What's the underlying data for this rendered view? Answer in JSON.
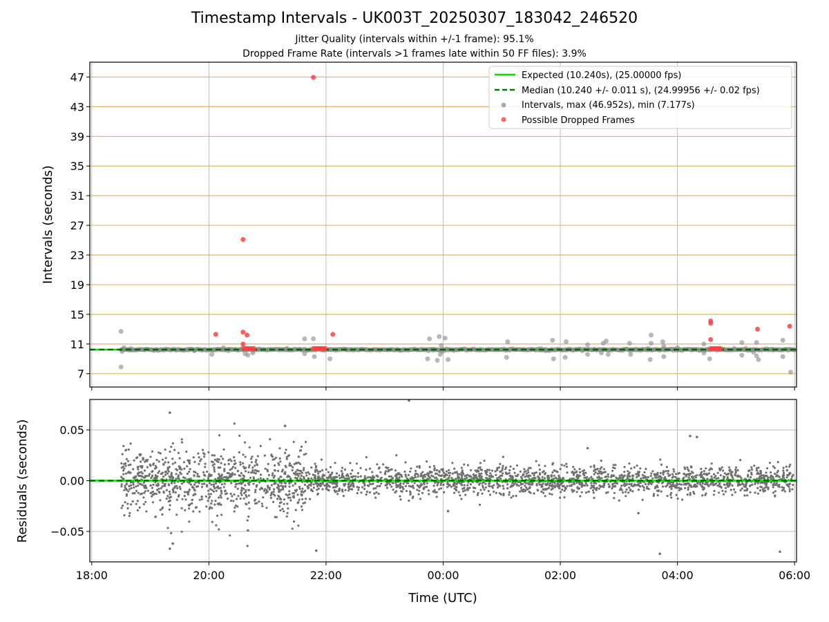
{
  "chart_data": [
    {
      "type": "scatter",
      "title": "Timestamp Intervals - UK003T_20250307_183042_246520",
      "subtitle_1": "Jitter Quality (intervals within +/-1 frame): 95.1%",
      "subtitle_2": "Dropped Frame Rate (intervals >1 frames late within 50 FF files): 3.9%",
      "ylabel": "Intervals (seconds)",
      "xlim": [
        "17:58",
        "06:02"
      ],
      "ylim": [
        5.2,
        49.0
      ],
      "yticks": [
        7,
        11,
        15,
        19,
        23,
        27,
        31,
        35,
        39,
        43,
        47
      ],
      "ytick_labels": [
        "7",
        "11",
        "15",
        "19",
        "23",
        "27",
        "31",
        "35",
        "39",
        "43",
        "47"
      ],
      "xticks": [
        "18:00",
        "20:00",
        "22:00",
        "00:00",
        "02:00",
        "04:00",
        "06:00"
      ],
      "xgrid": true,
      "hlines_color": "#d4b86a",
      "legend_position": "top-right",
      "legend": [
        {
          "label": "Expected (10.240s), (25.00000 fps)",
          "marker": "line",
          "color": "#00e000"
        },
        {
          "label": "Median (10.240 +/- 0.011 s), (24.99956 +/- 0.02 fps)",
          "marker": "dashed",
          "color": "#007800"
        },
        {
          "label": "Intervals, max (46.952s), min (7.177s)",
          "marker": "dot",
          "color": "#888888"
        },
        {
          "label": "Possible Dropped Frames",
          "marker": "dot",
          "color": "#ff4040"
        }
      ],
      "expected_interval": 10.24,
      "median_interval": 10.24,
      "series": [
        {
          "name": "Intervals, max (46.952s), min (7.177s)",
          "color": "#888888",
          "baseline": {
            "x_start": "18:30",
            "x_end": "06:00",
            "value": 10.24
          },
          "points": [
            [
              "18:30",
              12.7
            ],
            [
              "18:30",
              7.9
            ],
            [
              "18:31",
              10.0
            ],
            [
              "18:33",
              10.5
            ],
            [
              "18:40",
              10.4
            ],
            [
              "19:45",
              10.1
            ],
            [
              "20:03",
              9.6
            ],
            [
              "20:15",
              10.5
            ],
            [
              "20:20",
              10.1
            ],
            [
              "20:35",
              10.5
            ],
            [
              "20:37",
              9.7
            ],
            [
              "20:40",
              9.5
            ],
            [
              "20:45",
              9.8
            ],
            [
              "21:20",
              10.4
            ],
            [
              "21:38",
              9.7
            ],
            [
              "21:38",
              11.7
            ],
            [
              "21:47",
              11.7
            ],
            [
              "21:48",
              9.3
            ],
            [
              "22:04",
              9.0
            ],
            [
              "22:20",
              10.3
            ],
            [
              "23:15",
              10.2
            ],
            [
              "23:44",
              9.0
            ],
            [
              "23:46",
              11.7
            ],
            [
              "23:50",
              10.3
            ],
            [
              "23:54",
              8.8
            ],
            [
              "23:56",
              12.0
            ],
            [
              "23:57",
              9.6
            ],
            [
              "23:58",
              10.8
            ],
            [
              "23:59",
              10.0
            ],
            [
              "00:02",
              11.8
            ],
            [
              "00:05",
              8.9
            ],
            [
              "01:05",
              9.2
            ],
            [
              "01:06",
              11.3
            ],
            [
              "01:40",
              10.4
            ],
            [
              "01:45",
              10.1
            ],
            [
              "01:52",
              11.5
            ],
            [
              "01:53",
              9.0
            ],
            [
              "02:05",
              9.2
            ],
            [
              "02:06",
              11.3
            ],
            [
              "02:28",
              9.6
            ],
            [
              "02:28",
              10.9
            ],
            [
              "02:35",
              10.3
            ],
            [
              "02:42",
              9.8
            ],
            [
              "02:44",
              11.1
            ],
            [
              "02:47",
              11.4
            ],
            [
              "02:49",
              9.6
            ],
            [
              "03:11",
              11.1
            ],
            [
              "03:12",
              9.6
            ],
            [
              "03:30",
              10.4
            ],
            [
              "03:32",
              8.9
            ],
            [
              "03:33",
              11.1
            ],
            [
              "03:33",
              12.2
            ],
            [
              "03:45",
              11.3
            ],
            [
              "03:46",
              9.3
            ],
            [
              "03:46",
              10.7
            ],
            [
              "04:00",
              10.5
            ],
            [
              "04:15",
              10.2
            ],
            [
              "04:27",
              9.8
            ],
            [
              "04:27",
              11.0
            ],
            [
              "04:33",
              9.0
            ],
            [
              "04:48",
              10.3
            ],
            [
              "04:58",
              10.4
            ],
            [
              "05:06",
              9.5
            ],
            [
              "05:06",
              11.2
            ],
            [
              "05:10",
              10.4
            ],
            [
              "05:14",
              10.2
            ],
            [
              "05:18",
              9.9
            ],
            [
              "05:21",
              11.2
            ],
            [
              "05:21",
              9.4
            ],
            [
              "05:23",
              8.9
            ],
            [
              "05:38",
              10.3
            ],
            [
              "05:48",
              9.3
            ],
            [
              "05:48",
              11.5
            ],
            [
              "05:56",
              7.2
            ],
            [
              "06:00",
              10.2
            ]
          ]
        },
        {
          "name": "Possible Dropped Frames",
          "color": "#ff4040",
          "points": [
            [
              "20:07",
              12.3
            ],
            [
              "20:35",
              25.1
            ],
            [
              "20:35",
              12.6
            ],
            [
              "20:35",
              11.0
            ],
            [
              "20:39",
              12.2
            ],
            [
              "20:36",
              10.4
            ],
            [
              "20:38",
              10.4
            ],
            [
              "20:40",
              10.4
            ],
            [
              "20:42",
              10.4
            ],
            [
              "20:44",
              10.4
            ],
            [
              "20:46",
              10.4
            ],
            [
              "21:47",
              46.952
            ],
            [
              "21:47",
              10.4
            ],
            [
              "21:49",
              10.4
            ],
            [
              "21:51",
              10.4
            ],
            [
              "21:53",
              10.4
            ],
            [
              "21:55",
              10.4
            ],
            [
              "21:57",
              10.4
            ],
            [
              "21:59",
              10.4
            ],
            [
              "22:07",
              12.3
            ],
            [
              "04:34",
              14.1
            ],
            [
              "04:34",
              13.8
            ],
            [
              "04:34",
              11.6
            ],
            [
              "04:34",
              10.4
            ],
            [
              "04:36",
              10.4
            ],
            [
              "04:38",
              10.4
            ],
            [
              "04:40",
              10.4
            ],
            [
              "04:42",
              10.4
            ],
            [
              "04:44",
              10.4
            ],
            [
              "05:22",
              13.0
            ],
            [
              "05:55",
              13.4
            ]
          ]
        }
      ]
    },
    {
      "type": "scatter",
      "ylabel": "Residuals (seconds)",
      "xlabel": "Time (UTC)",
      "xlim": [
        "17:58",
        "06:02"
      ],
      "ylim": [
        -0.08,
        0.08
      ],
      "yticks": [
        -0.05,
        0.0,
        0.05
      ],
      "ytick_labels": [
        "−0.05",
        "0.00",
        "0.05"
      ],
      "xticks": [
        "18:00",
        "20:00",
        "22:00",
        "00:00",
        "02:00",
        "04:00",
        "06:00"
      ],
      "xtick_labels": [
        "18:00",
        "20:00",
        "22:00",
        "00:00",
        "02:00",
        "04:00",
        "06:00"
      ],
      "grid": true,
      "zero_line_color": "#00e000",
      "series": [
        {
          "name": "Residuals",
          "color": "#707070",
          "segments": [
            {
              "x_start": "18:30",
              "x_end": "21:40",
              "std": 0.016,
              "n": 900
            },
            {
              "x_start": "21:40",
              "x_end": "06:00",
              "std": 0.007,
              "n": 1900
            }
          ],
          "outliers": [
            [
              "19:20",
              0.067
            ],
            [
              "19:20",
              -0.067
            ],
            [
              "19:23",
              -0.062
            ],
            [
              "21:18",
              0.054
            ],
            [
              "21:50",
              -0.069
            ],
            [
              "23:25",
              0.079
            ],
            [
              "20:40",
              -0.049
            ],
            [
              "03:42",
              -0.072
            ],
            [
              "05:45",
              -0.07
            ],
            [
              "04:20",
              0.043
            ],
            [
              "04:13",
              0.044
            ],
            [
              "02:28",
              0.032
            ],
            [
              "03:20",
              -0.032
            ],
            [
              "00:05",
              -0.03
            ]
          ]
        }
      ]
    }
  ]
}
